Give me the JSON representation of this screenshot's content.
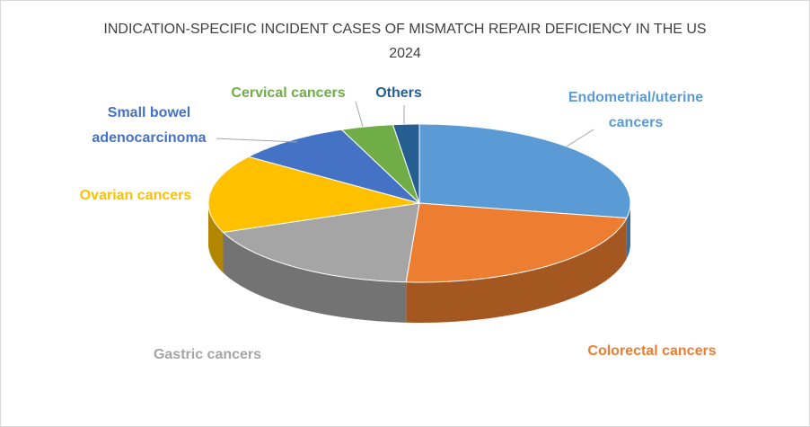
{
  "chart_data": {
    "type": "pie3d",
    "title": "INDICATION-SPECIFIC INCIDENT CASES OF MISMATCH REPAIR DEFICIENCY IN THE US 2024",
    "categories": [
      "Endometrial/uterine cancers",
      "Colorectal cancers",
      "Gastric cancers",
      "Ovarian cancers",
      "Small bowel adenocarcinoma",
      "Cervical cancers",
      "Others"
    ],
    "values": [
      28,
      23,
      18,
      16,
      9,
      4,
      2
    ],
    "colors": [
      "#5b9bd5",
      "#ed7d31",
      "#a5a5a5",
      "#ffc000",
      "#4472c4",
      "#70ad47",
      "#255e91"
    ]
  }
}
